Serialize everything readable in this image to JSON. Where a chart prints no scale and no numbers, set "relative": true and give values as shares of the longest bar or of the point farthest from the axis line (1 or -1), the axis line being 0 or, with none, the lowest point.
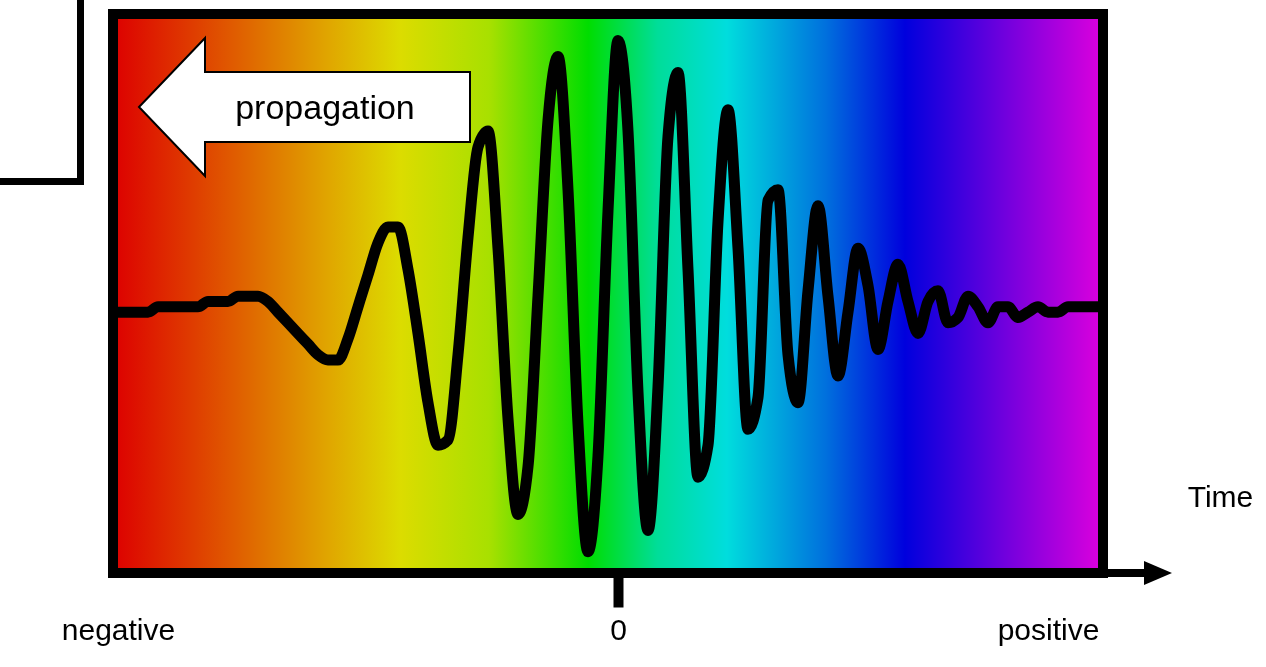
{
  "chart_data": {
    "type": "line",
    "relative": true,
    "xlabel": "Time",
    "annotations": [
      "propagation"
    ],
    "categories": [
      "negative",
      null,
      null,
      null,
      null,
      null,
      null,
      null,
      null,
      null,
      null,
      null,
      null,
      null,
      null,
      null,
      null,
      null,
      null,
      null,
      null,
      null,
      null,
      null,
      null,
      null,
      null,
      null,
      null,
      null,
      null,
      null,
      null,
      null,
      null,
      null,
      null,
      null,
      null,
      null,
      null,
      null,
      null,
      null,
      null,
      null,
      null,
      null,
      null,
      null,
      "0",
      null,
      null,
      null,
      null,
      null,
      null,
      null,
      null,
      null,
      null,
      null,
      null,
      null,
      null,
      null,
      null,
      null,
      null,
      null,
      null,
      null,
      null,
      null,
      null,
      null,
      null,
      null,
      null,
      null,
      null,
      null,
      null,
      null,
      null,
      null,
      null,
      null,
      null,
      null,
      null,
      null,
      null,
      "positive",
      null,
      null,
      null,
      null,
      null
    ],
    "grid": false,
    "line_style": "solid",
    "series": [
      {
        "color": "#000000",
        "values": [
          0.49,
          0.49,
          0.49,
          0.49,
          0.5,
          0.5,
          0.5,
          0.5,
          0.5,
          0.51,
          0.51,
          0.51,
          0.52,
          0.52,
          0.52,
          0.51,
          0.49,
          0.47,
          0.45,
          0.43,
          0.41,
          0.4,
          0.4,
          0.44,
          0.5,
          0.56,
          0.62,
          0.65,
          0.65,
          0.57,
          0.45,
          0.32,
          0.24,
          0.25,
          0.41,
          0.63,
          0.8,
          0.83,
          0.61,
          0.29,
          0.11,
          0.2,
          0.52,
          0.85,
          0.97,
          0.72,
          0.28,
          0.04,
          0.22,
          0.68,
          1.0,
          0.83,
          0.34,
          0.08,
          0.35,
          0.82,
          0.94,
          0.57,
          0.18,
          0.24,
          0.66,
          0.87,
          0.61,
          0.27,
          0.33,
          0.7,
          0.72,
          0.41,
          0.32,
          0.53,
          0.69,
          0.52,
          0.37,
          0.49,
          0.61,
          0.54,
          0.42,
          0.51,
          0.58,
          0.51,
          0.45,
          0.51,
          0.53,
          0.47,
          0.48,
          0.52,
          0.5,
          0.47,
          0.5,
          0.5,
          0.48,
          0.49,
          0.5,
          0.49,
          0.49,
          0.5,
          0.5,
          0.5,
          0.5
        ]
      }
    ]
  }
}
